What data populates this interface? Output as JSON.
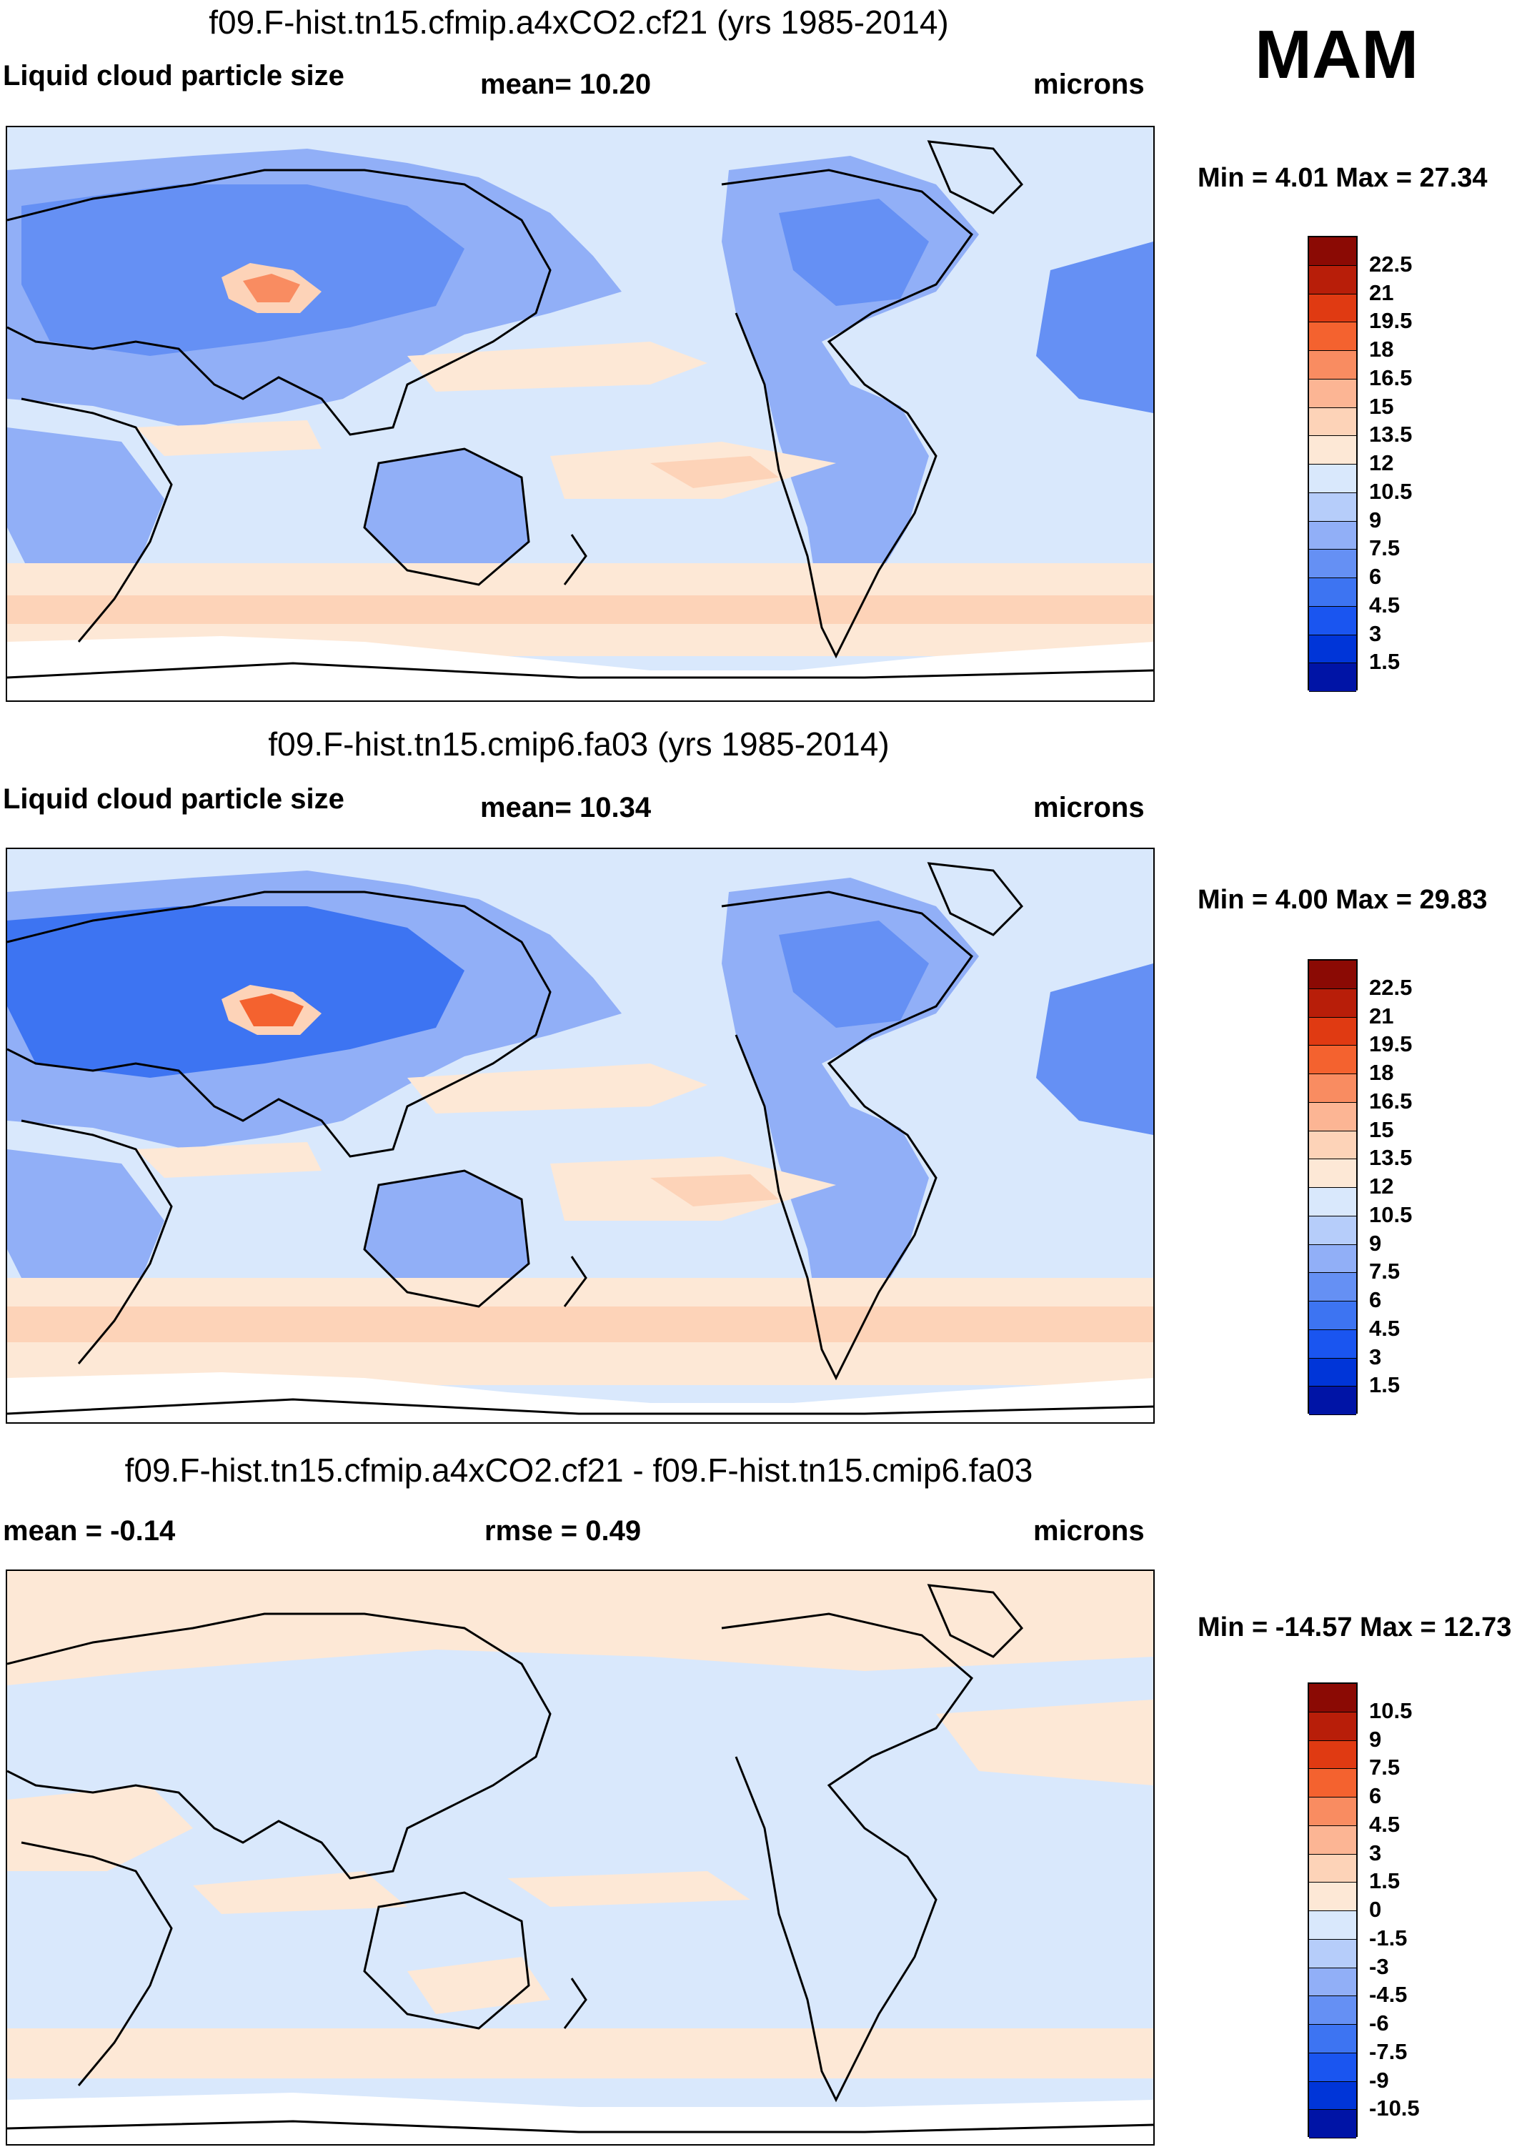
{
  "season": "MAM",
  "palette_abs": [
    "#000080",
    "#0014a6",
    "#0035d8",
    "#1a55f0",
    "#3d74f2",
    "#6590f4",
    "#91aff7",
    "#b6cdfa",
    "#d9e8fc",
    "#fde8d6",
    "#fdd3b8",
    "#fcb594",
    "#f98c61",
    "#f4622f",
    "#e03a12",
    "#b81e09",
    "#8b0a04"
  ],
  "palette_diff": [
    "#000080",
    "#0014a6",
    "#0035d8",
    "#1a55f0",
    "#3d74f2",
    "#6590f4",
    "#91aff7",
    "#b6cdfa",
    "#d9e8fc",
    "#fde8d6",
    "#fdd3b8",
    "#fcb594",
    "#f98c61",
    "#f4622f",
    "#e03a12",
    "#b81e09",
    "#8b0a04"
  ],
  "panels": [
    {
      "title": "f09.F-hist.tn15.cfmip.a4xCO2.cf21 (yrs 1985-2014)",
      "left_label": "Liquid cloud particle size",
      "center_label": "mean=  10.20",
      "units": "microns",
      "minmax": "Min =   4.01 Max =  27.34",
      "levels": [
        "22.5",
        "21",
        "19.5",
        "18",
        "16.5",
        "15",
        "13.5",
        "12",
        "10.5",
        "9",
        "7.5",
        "6",
        "4.5",
        "3",
        "1.5"
      ],
      "legend_label": "Liquid cloud particle size colorbar"
    },
    {
      "title": "f09.F-hist.tn15.cmip6.fa03 (yrs 1985-2014)",
      "left_label": "Liquid cloud particle size",
      "center_label": "mean=  10.34",
      "units": "microns",
      "minmax": "Min =   4.00 Max =  29.83",
      "levels": [
        "22.5",
        "21",
        "19.5",
        "18",
        "16.5",
        "15",
        "13.5",
        "12",
        "10.5",
        "9",
        "7.5",
        "6",
        "4.5",
        "3",
        "1.5"
      ],
      "legend_label": "Liquid cloud particle size colorbar"
    },
    {
      "title": "f09.F-hist.tn15.cfmip.a4xCO2.cf21 - f09.F-hist.tn15.cmip6.fa03",
      "left_label": "mean =  -0.14",
      "center_label": "rmse =   0.49",
      "units": "microns",
      "minmax": "Min = -14.57 Max =  12.73",
      "levels": [
        "10.5",
        "9",
        "7.5",
        "6",
        "4.5",
        "3",
        "1.5",
        "0",
        "-1.5",
        "-3",
        "-4.5",
        "-6",
        "-7.5",
        "-9",
        "-10.5"
      ],
      "legend_label": "Difference colorbar"
    }
  ],
  "chart_data": [
    {
      "type": "heatmap",
      "title": "f09.F-hist.tn15.cfmip.a4xCO2.cf21 (yrs 1985-2014)",
      "variable": "Liquid cloud particle size",
      "units": "microns",
      "mean": 10.2,
      "min": 4.01,
      "max": 27.34,
      "contour_levels": [
        1.5,
        3,
        4.5,
        6,
        7.5,
        9,
        10.5,
        12,
        13.5,
        15,
        16.5,
        18,
        19.5,
        21,
        22.5
      ],
      "projection": "cylindrical equidistant, Pacific-centered world map"
    },
    {
      "type": "heatmap",
      "title": "f09.F-hist.tn15.cmip6.fa03 (yrs 1985-2014)",
      "variable": "Liquid cloud particle size",
      "units": "microns",
      "mean": 10.34,
      "min": 4.0,
      "max": 29.83,
      "contour_levels": [
        1.5,
        3,
        4.5,
        6,
        7.5,
        9,
        10.5,
        12,
        13.5,
        15,
        16.5,
        18,
        19.5,
        21,
        22.5
      ],
      "projection": "cylindrical equidistant, Pacific-centered world map"
    },
    {
      "type": "heatmap",
      "title": "f09.F-hist.tn15.cfmip.a4xCO2.cf21 - f09.F-hist.tn15.cmip6.fa03",
      "variable": "difference",
      "units": "microns",
      "mean": -0.14,
      "rmse": 0.49,
      "min": -14.57,
      "max": 12.73,
      "contour_levels": [
        -10.5,
        -9,
        -7.5,
        -6,
        -4.5,
        -3,
        -1.5,
        0,
        1.5,
        3,
        4.5,
        6,
        7.5,
        9,
        10.5
      ],
      "projection": "cylindrical equidistant, Pacific-centered world map"
    }
  ]
}
